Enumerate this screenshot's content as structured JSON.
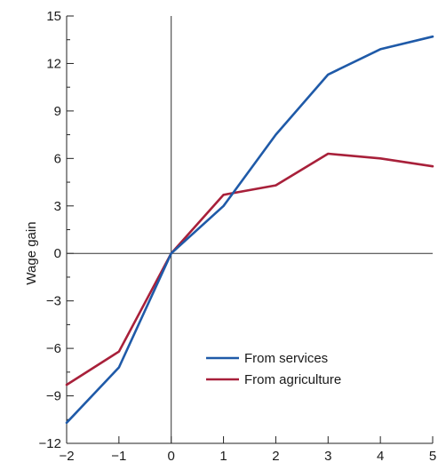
{
  "chart_data": {
    "type": "line",
    "title": "",
    "xlabel": "",
    "ylabel": "Wage gain",
    "x": [
      -2,
      -1,
      0,
      1,
      2,
      3,
      4,
      5
    ],
    "xlim": [
      -2,
      5
    ],
    "ylim": [
      -12,
      15
    ],
    "x_ticks": [
      -2,
      -1,
      0,
      1,
      2,
      3,
      4,
      5
    ],
    "x_tick_labels": [
      "−2",
      "−1",
      "0",
      "1",
      "2",
      "3",
      "4",
      "5"
    ],
    "y_ticks": [
      -12,
      -9,
      -6,
      -3,
      0,
      3,
      6,
      9,
      12,
      15
    ],
    "y_tick_labels": [
      "−12",
      "−9",
      "−6",
      "−3",
      "0",
      "3",
      "6",
      "9",
      "12",
      "15"
    ],
    "y_minor_step": 1.5,
    "grid": false,
    "legend_position": "bottom-center",
    "series": [
      {
        "name": "From services",
        "color": "#1f5aa8",
        "values": [
          -10.7,
          -7.2,
          0,
          3.0,
          7.5,
          11.3,
          12.9,
          13.7
        ]
      },
      {
        "name": "From agriculture",
        "color": "#a8203a",
        "values": [
          -8.3,
          -6.2,
          0,
          3.7,
          4.3,
          6.3,
          6.0,
          5.5
        ]
      }
    ]
  }
}
